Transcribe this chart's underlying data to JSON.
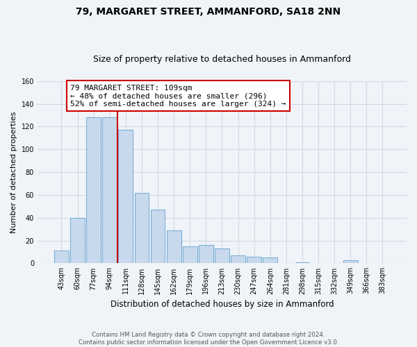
{
  "title": "79, MARGARET STREET, AMMANFORD, SA18 2NN",
  "subtitle": "Size of property relative to detached houses in Ammanford",
  "xlabel": "Distribution of detached houses by size in Ammanford",
  "ylabel": "Number of detached properties",
  "footer_line1": "Contains HM Land Registry data © Crown copyright and database right 2024.",
  "footer_line2": "Contains public sector information licensed under the Open Government Licence v3.0.",
  "bin_labels": [
    "43sqm",
    "60sqm",
    "77sqm",
    "94sqm",
    "111sqm",
    "128sqm",
    "145sqm",
    "162sqm",
    "179sqm",
    "196sqm",
    "213sqm",
    "230sqm",
    "247sqm",
    "264sqm",
    "281sqm",
    "298sqm",
    "315sqm",
    "332sqm",
    "349sqm",
    "366sqm",
    "383sqm"
  ],
  "bar_values": [
    11,
    40,
    128,
    128,
    117,
    62,
    47,
    29,
    15,
    16,
    13,
    7,
    6,
    5,
    0,
    1,
    0,
    0,
    3,
    0,
    0
  ],
  "bar_fill_color": "#c9d9ed",
  "bar_edge_color": "#7aaed6",
  "marker_line_index": 3.5,
  "marker_label": "79 MARGARET STREET: 109sqm",
  "marker_color": "#cc0000",
  "annotation_line1": "← 48% of detached houses are smaller (296)",
  "annotation_line2": "52% of semi-detached houses are larger (324) →",
  "annotation_box_color": "#ffffff",
  "annotation_box_edge": "#cc0000",
  "ylim": [
    0,
    160
  ],
  "yticks": [
    0,
    20,
    40,
    60,
    80,
    100,
    120,
    140,
    160
  ],
  "background_color": "#f0f4f8",
  "grid_color": "#d0d8e4",
  "title_fontsize": 10,
  "subtitle_fontsize": 9
}
